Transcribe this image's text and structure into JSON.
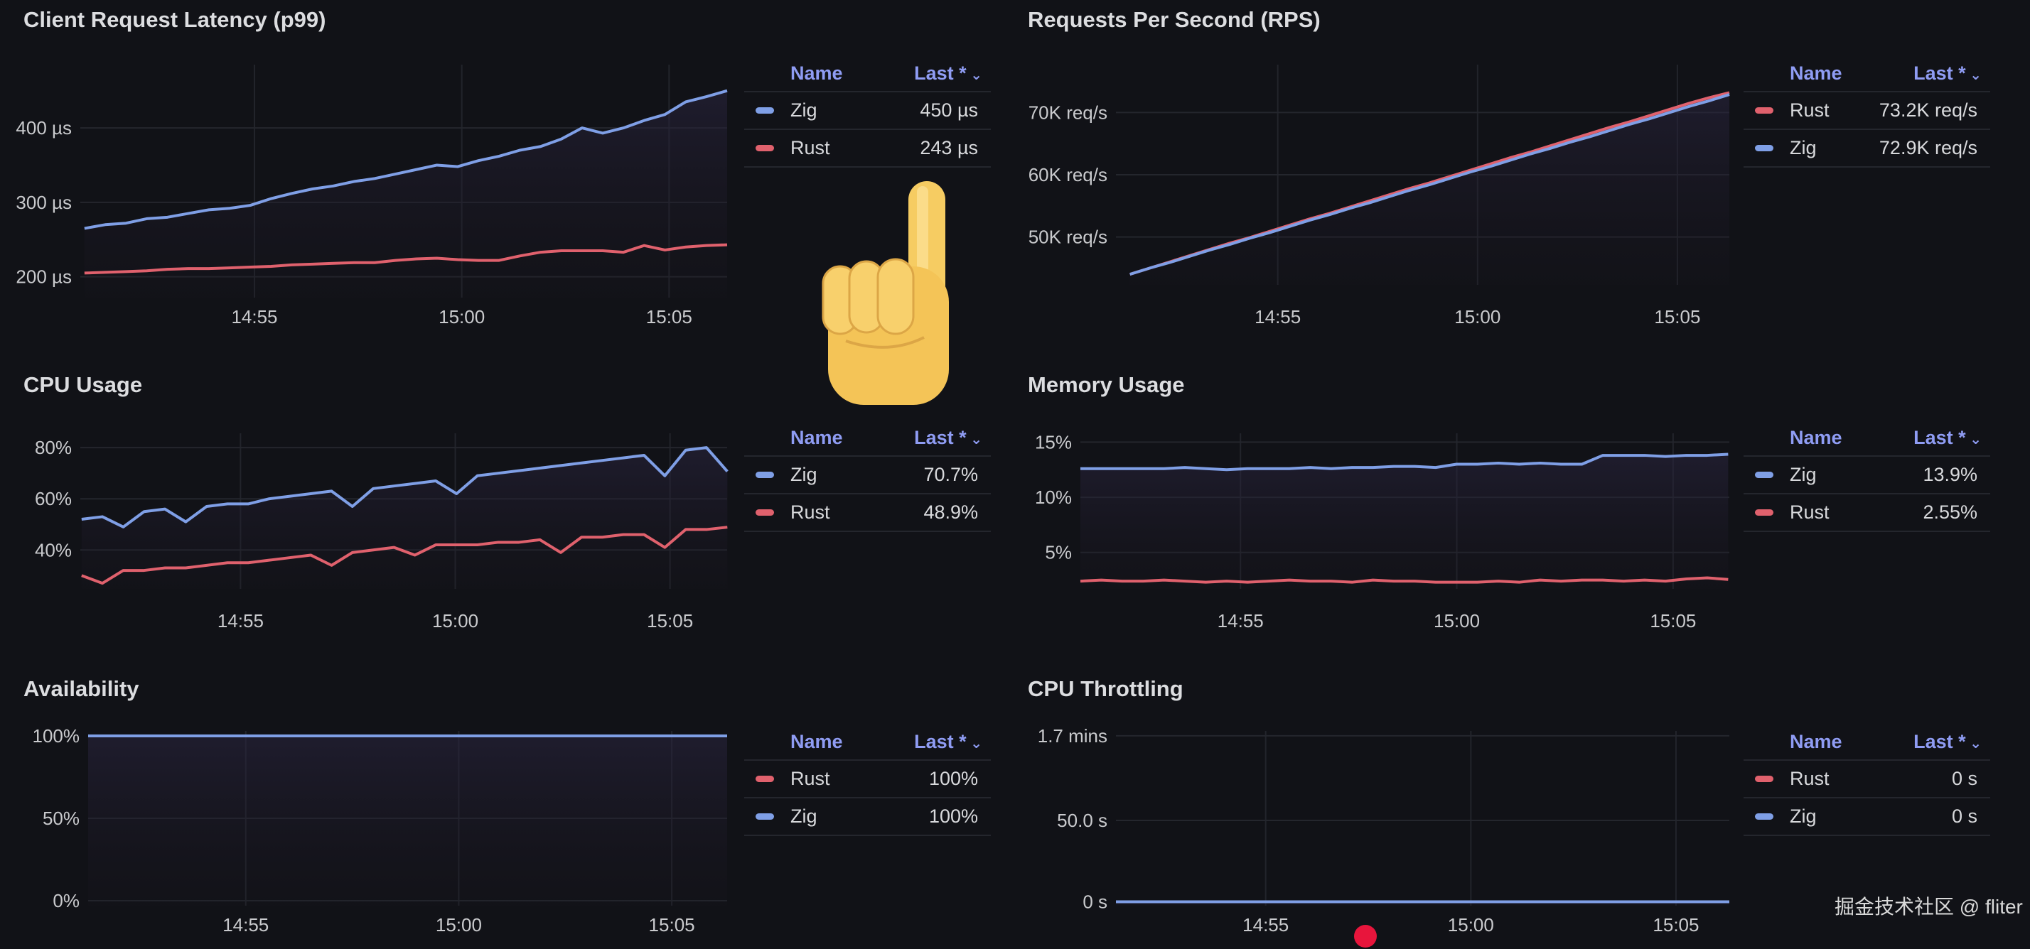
{
  "colors": {
    "zig": "#7f9fe6",
    "rust": "#e0616d",
    "background": "#111217",
    "legend_header": "#8f9cf3"
  },
  "legend_headers": {
    "name": "Name",
    "last": "Last *",
    "sort_icon": "chevron-down-icon"
  },
  "watermark": "掘金技术社区 @ fliter",
  "chart_data": [
    {
      "id": "latency",
      "type": "line",
      "title": "Client Request Latency (p99)",
      "xlabel": "",
      "ylabel": "",
      "xunit": "minutes after 14:50",
      "xlim": [
        0.8,
        16.4
      ],
      "ylim": [
        172,
        485
      ],
      "xticks": [
        {
          "value": 5,
          "label": "14:55"
        },
        {
          "value": 10,
          "label": "15:00"
        },
        {
          "value": 15,
          "label": "15:05"
        }
      ],
      "yticks": [
        {
          "value": 200,
          "label": "200 µs"
        },
        {
          "value": 300,
          "label": "300 µs"
        },
        {
          "value": 400,
          "label": "400 µs"
        }
      ],
      "x_start": 0.9,
      "x_step": 0.5,
      "series": [
        {
          "name": "Zig",
          "color": "#7f9fe6",
          "values": [
            265,
            270,
            272,
            278,
            280,
            285,
            290,
            292,
            296,
            305,
            312,
            318,
            322,
            328,
            332,
            338,
            344,
            350,
            348,
            356,
            362,
            370,
            375,
            385,
            400,
            393,
            400,
            410,
            418,
            435,
            442,
            450
          ]
        },
        {
          "name": "Rust",
          "color": "#e0616d",
          "values": [
            205,
            206,
            207,
            208,
            210,
            211,
            211,
            212,
            213,
            214,
            216,
            217,
            218,
            219,
            219,
            222,
            224,
            225,
            223,
            222,
            222,
            228,
            233,
            235,
            235,
            235,
            233,
            242,
            236,
            240,
            242,
            243
          ]
        }
      ],
      "legend": [
        {
          "name": "Zig",
          "color": "#7f9fe6",
          "last": "450 µs"
        },
        {
          "name": "Rust",
          "color": "#e0616d",
          "last": "243 µs"
        }
      ]
    },
    {
      "id": "rps",
      "type": "line",
      "title": "Requests Per Second (RPS)",
      "xlabel": "",
      "ylabel": "",
      "xunit": "minutes after 14:50",
      "yunit": "K req/s",
      "xlim": [
        0.95,
        16.3
      ],
      "ylim": [
        42.3,
        77.7
      ],
      "xticks": [
        {
          "value": 5,
          "label": "14:55"
        },
        {
          "value": 10,
          "label": "15:00"
        },
        {
          "value": 15,
          "label": "15:05"
        }
      ],
      "yticks": [
        {
          "value": 50,
          "label": "50K req/s"
        },
        {
          "value": 60,
          "label": "60K req/s"
        },
        {
          "value": 70,
          "label": "70K req/s"
        }
      ],
      "x_start": 1.3,
      "x_step": 0.5,
      "series": [
        {
          "name": "Rust",
          "color": "#e0616d",
          "values": [
            44.0,
            45.0,
            46.0,
            47.0,
            48.0,
            49.0,
            49.9,
            50.9,
            51.9,
            52.9,
            53.8,
            54.8,
            55.8,
            56.8,
            57.8,
            58.7,
            59.7,
            60.7,
            61.7,
            62.7,
            63.6,
            64.6,
            65.6,
            66.6,
            67.6,
            68.5,
            69.5,
            70.5,
            71.5,
            72.4,
            73.2
          ]
        },
        {
          "name": "Zig",
          "color": "#7f9fe6",
          "values": [
            44.0,
            45.0,
            45.9,
            46.9,
            47.9,
            48.8,
            49.8,
            50.7,
            51.7,
            52.7,
            53.6,
            54.6,
            55.5,
            56.5,
            57.5,
            58.4,
            59.4,
            60.4,
            61.3,
            62.3,
            63.3,
            64.2,
            65.2,
            66.1,
            67.1,
            68.1,
            69.0,
            70.0,
            71.0,
            71.9,
            72.9
          ]
        }
      ],
      "legend": [
        {
          "name": "Rust",
          "color": "#e0616d",
          "last": "73.2K req/s"
        },
        {
          "name": "Zig",
          "color": "#7f9fe6",
          "last": "72.9K req/s"
        }
      ]
    },
    {
      "id": "cpu",
      "type": "line",
      "title": "CPU Usage",
      "xlabel": "",
      "ylabel": "",
      "xunit": "minutes after 14:50",
      "xlim": [
        1.27,
        16.33
      ],
      "ylim": [
        24.8,
        85.6
      ],
      "xticks": [
        {
          "value": 5,
          "label": "14:55"
        },
        {
          "value": 10,
          "label": "15:00"
        },
        {
          "value": 15,
          "label": "15:05"
        }
      ],
      "yticks": [
        {
          "value": 40,
          "label": "40%"
        },
        {
          "value": 60,
          "label": "60%"
        },
        {
          "value": 80,
          "label": "80%"
        }
      ],
      "x_start": 1.3,
      "x_step": 0.485,
      "series": [
        {
          "name": "Zig",
          "color": "#7f9fe6",
          "values": [
            52,
            53,
            49,
            55,
            56,
            51,
            57,
            58,
            58,
            60,
            61,
            62,
            63,
            57,
            64,
            65,
            66,
            67,
            62,
            69,
            70,
            71,
            72,
            73,
            74,
            75,
            76,
            77,
            69,
            79,
            80,
            70.7
          ]
        },
        {
          "name": "Rust",
          "color": "#e0616d",
          "values": [
            30,
            27,
            32,
            32,
            33,
            33,
            34,
            35,
            35,
            36,
            37,
            38,
            34,
            39,
            40,
            41,
            38,
            42,
            42,
            42,
            43,
            43,
            44,
            39,
            45,
            45,
            46,
            46,
            41,
            48,
            48,
            48.9
          ]
        }
      ],
      "legend": [
        {
          "name": "Zig",
          "color": "#7f9fe6",
          "last": "70.7%"
        },
        {
          "name": "Rust",
          "color": "#e0616d",
          "last": "48.9%"
        }
      ]
    },
    {
      "id": "memory",
      "type": "line",
      "title": "Memory Usage",
      "xlabel": "",
      "ylabel": "",
      "xunit": "minutes after 14:50",
      "xlim": [
        1.3,
        16.3
      ],
      "ylim": [
        1.7,
        15.8
      ],
      "xticks": [
        {
          "value": 5,
          "label": "14:55"
        },
        {
          "value": 10,
          "label": "15:00"
        },
        {
          "value": 15,
          "label": "15:05"
        }
      ],
      "yticks": [
        {
          "value": 5,
          "label": "5%"
        },
        {
          "value": 10,
          "label": "10%"
        },
        {
          "value": 15,
          "label": "15%"
        }
      ],
      "x_start": 1.3,
      "x_step": 0.483,
      "series": [
        {
          "name": "Zig",
          "color": "#7f9fe6",
          "values": [
            12.6,
            12.6,
            12.6,
            12.6,
            12.6,
            12.7,
            12.6,
            12.5,
            12.6,
            12.6,
            12.6,
            12.7,
            12.6,
            12.7,
            12.7,
            12.8,
            12.8,
            12.7,
            13.0,
            13.0,
            13.1,
            13.0,
            13.1,
            13.0,
            13.0,
            13.8,
            13.8,
            13.8,
            13.7,
            13.8,
            13.8,
            13.9
          ]
        },
        {
          "name": "Rust",
          "color": "#e0616d",
          "values": [
            2.4,
            2.5,
            2.4,
            2.4,
            2.5,
            2.4,
            2.3,
            2.4,
            2.3,
            2.4,
            2.5,
            2.4,
            2.4,
            2.3,
            2.5,
            2.4,
            2.4,
            2.3,
            2.3,
            2.3,
            2.4,
            2.3,
            2.5,
            2.4,
            2.5,
            2.5,
            2.4,
            2.5,
            2.4,
            2.6,
            2.7,
            2.55
          ]
        }
      ],
      "legend": [
        {
          "name": "Zig",
          "color": "#7f9fe6",
          "last": "13.9%"
        },
        {
          "name": "Rust",
          "color": "#e0616d",
          "last": "2.55%"
        }
      ]
    },
    {
      "id": "availability",
      "type": "line",
      "title": "Availability",
      "xlabel": "",
      "ylabel": "",
      "xunit": "minutes after 14:50",
      "xlim": [
        1.3,
        16.3
      ],
      "ylim": [
        -3,
        103
      ],
      "xticks": [
        {
          "value": 5,
          "label": "14:55"
        },
        {
          "value": 10,
          "label": "15:00"
        },
        {
          "value": 15,
          "label": "15:05"
        }
      ],
      "yticks": [
        {
          "value": 0,
          "label": "0%"
        },
        {
          "value": 50,
          "label": "50%"
        },
        {
          "value": 100,
          "label": "100%"
        }
      ],
      "x_start": 1.3,
      "x_step": 15.0,
      "series": [
        {
          "name": "Rust",
          "color": "#e0616d",
          "values": [
            100,
            100
          ]
        },
        {
          "name": "Zig",
          "color": "#7f9fe6",
          "values": [
            100,
            100
          ]
        }
      ],
      "legend": [
        {
          "name": "Rust",
          "color": "#e0616d",
          "last": "100%"
        },
        {
          "name": "Zig",
          "color": "#7f9fe6",
          "last": "100%"
        }
      ]
    },
    {
      "id": "throttling",
      "type": "line",
      "title": "CPU Throttling",
      "xlabel": "",
      "ylabel": "",
      "xunit": "minutes after 14:50",
      "yunit": "seconds",
      "xlim": [
        1.35,
        16.3
      ],
      "ylim": [
        -2.4,
        105
      ],
      "xticks": [
        {
          "value": 5,
          "label": "14:55"
        },
        {
          "value": 10,
          "label": "15:00"
        },
        {
          "value": 15,
          "label": "15:05"
        }
      ],
      "yticks": [
        {
          "value": 0,
          "label": "0 s"
        },
        {
          "value": 50,
          "label": "50.0 s"
        },
        {
          "value": 102,
          "label": "1.7 mins"
        }
      ],
      "x_start": 1.35,
      "x_step": 14.95,
      "series": [
        {
          "name": "Rust",
          "color": "#e0616d",
          "values": [
            0,
            0
          ]
        },
        {
          "name": "Zig",
          "color": "#7f9fe6",
          "values": [
            0,
            0
          ]
        }
      ],
      "legend": [
        {
          "name": "Rust",
          "color": "#e0616d",
          "last": "0 s"
        },
        {
          "name": "Zig",
          "color": "#7f9fe6",
          "last": "0 s"
        }
      ]
    }
  ]
}
